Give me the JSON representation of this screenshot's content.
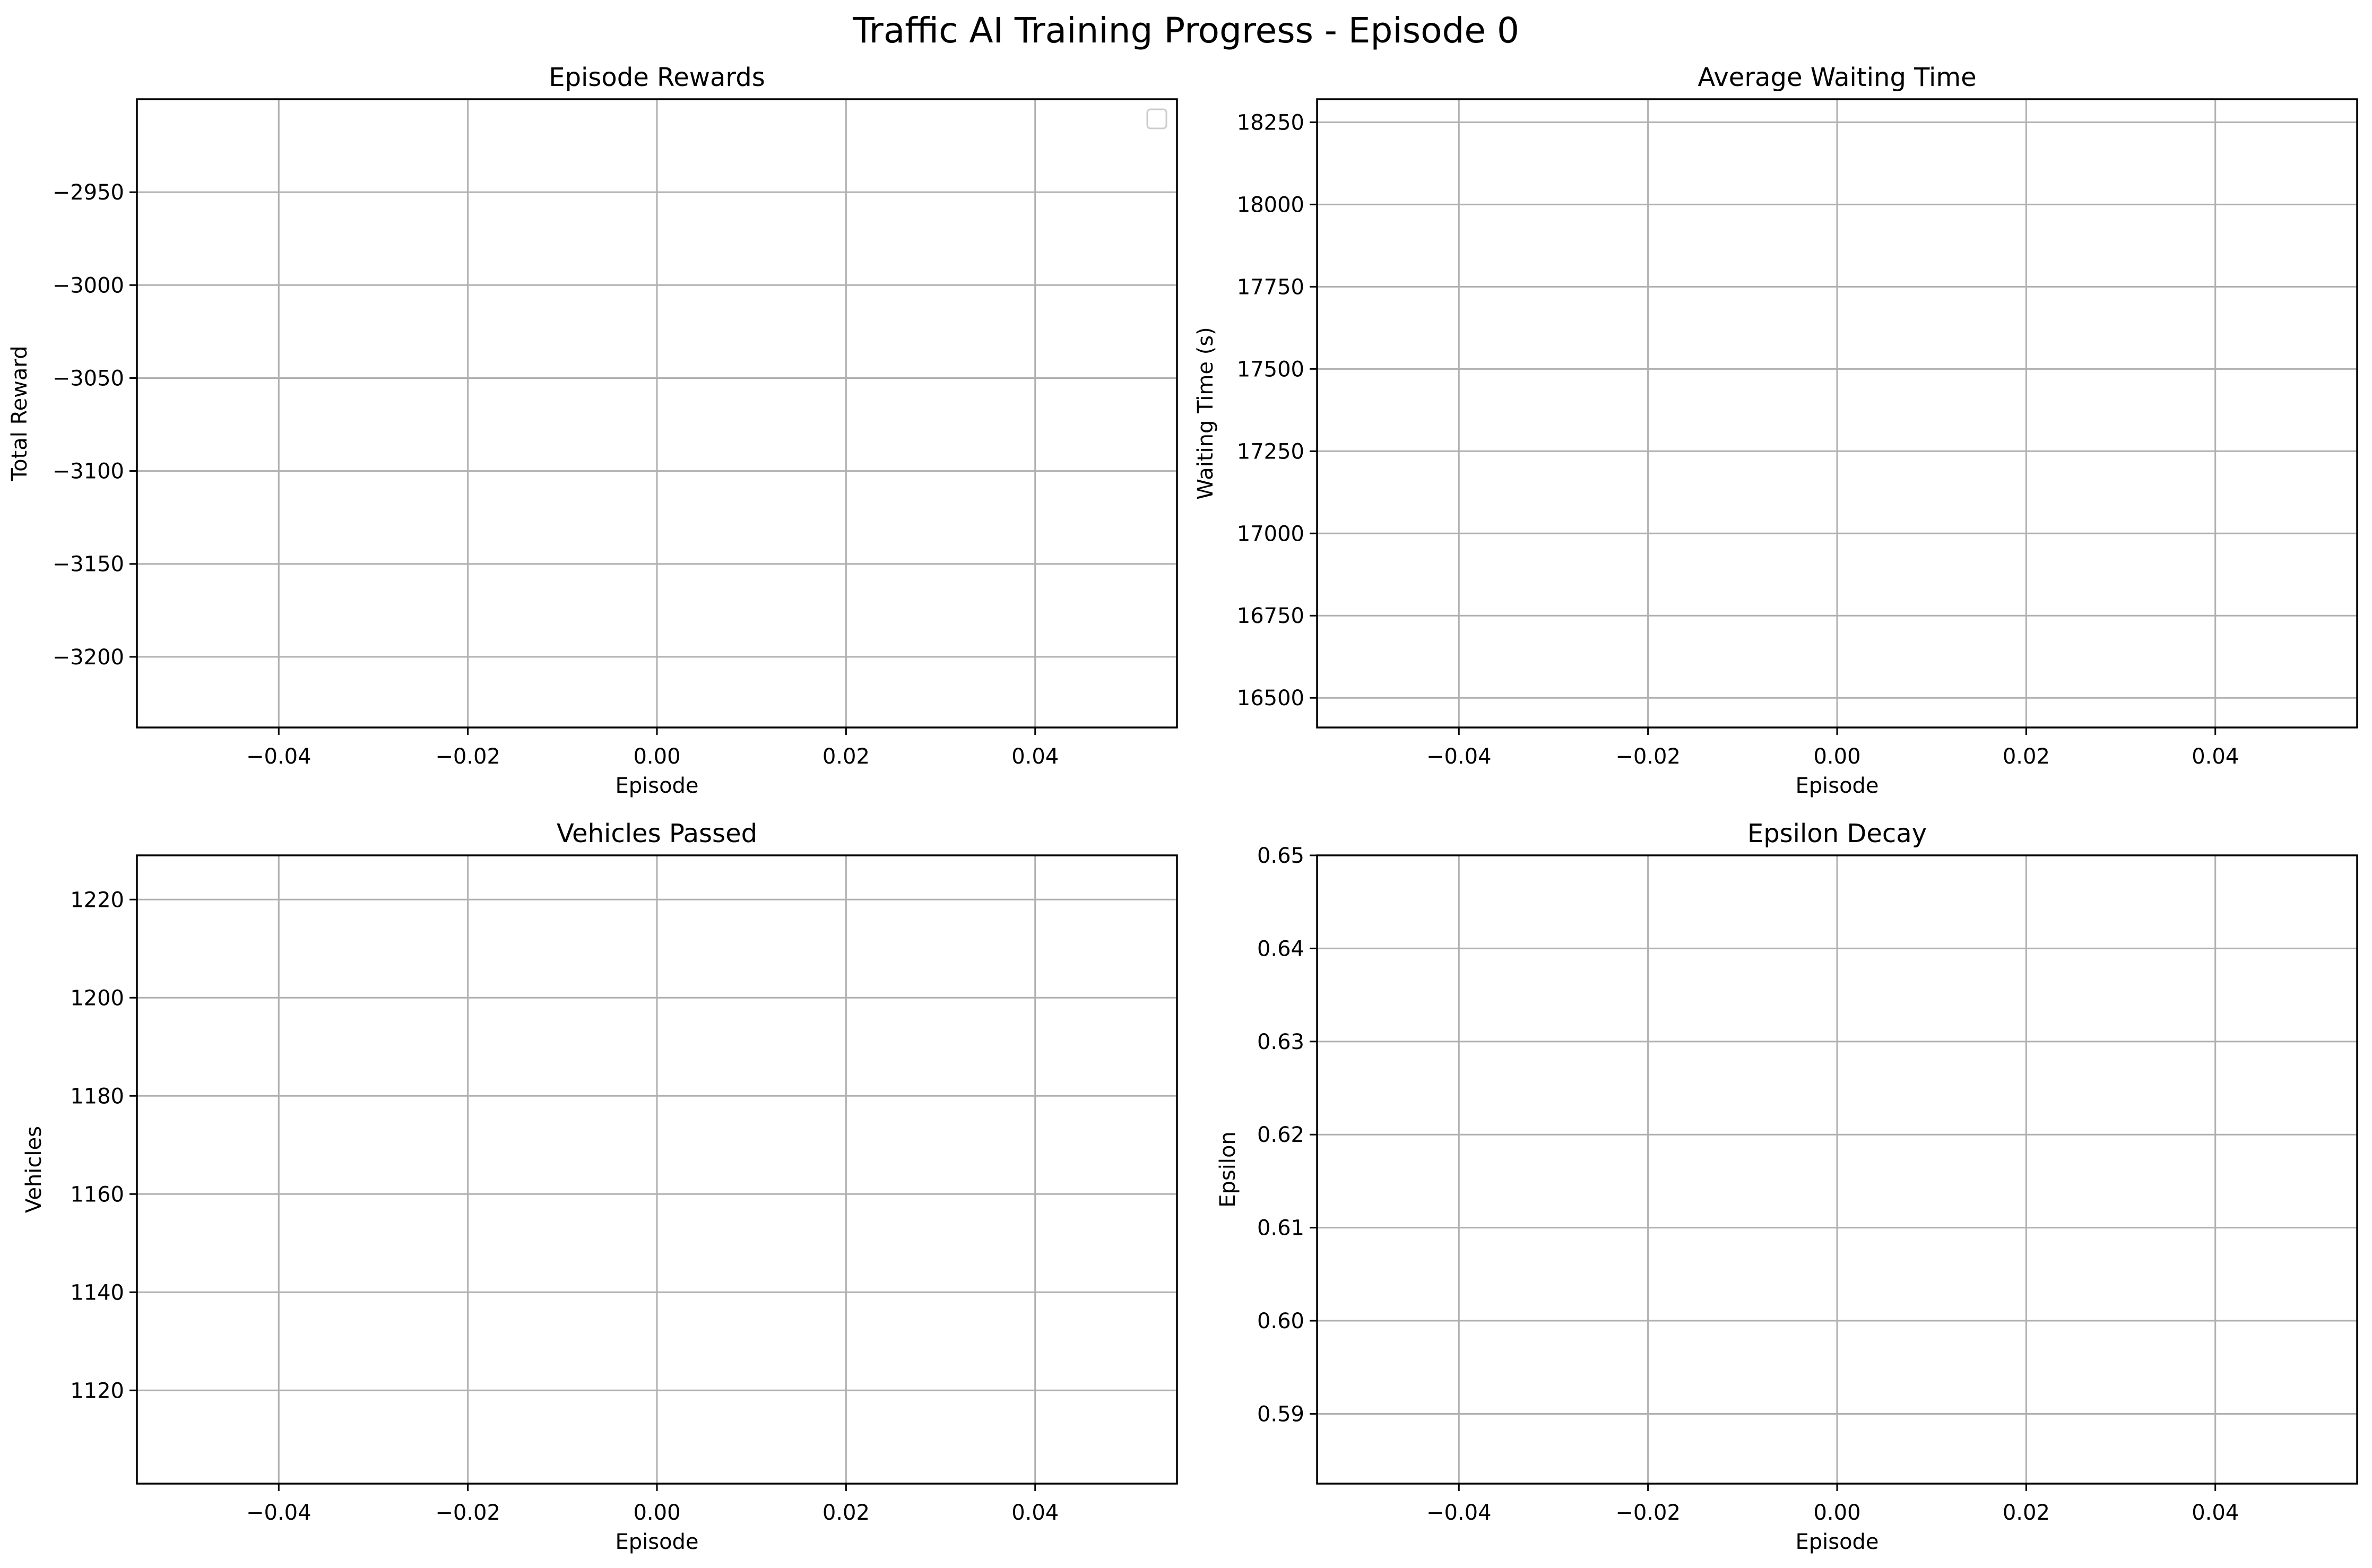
{
  "figure": {
    "title": "Traffic AI Training Progress - Episode 0"
  },
  "chart_data": [
    {
      "type": "line",
      "title": "Episode Rewards",
      "xlabel": "Episode",
      "ylabel": "Total Reward",
      "xlim": [
        -0.055,
        0.055
      ],
      "ylim": [
        -3238,
        -2900
      ],
      "xticks": [
        -0.04,
        -0.02,
        0.0,
        0.02,
        0.04
      ],
      "xtick_labels": [
        "−0.04",
        "−0.02",
        "0.00",
        "0.02",
        "0.04"
      ],
      "yticks": [
        -2950,
        -3000,
        -3050,
        -3100,
        -3150,
        -3200
      ],
      "ytick_labels": [
        "−2950",
        "−3000",
        "−3050",
        "−3100",
        "−3150",
        "−3200"
      ],
      "grid": true,
      "legend": {
        "placement": "upper right",
        "entries": []
      },
      "series": []
    },
    {
      "type": "line",
      "title": "Average Waiting Time",
      "xlabel": "Episode",
      "ylabel": "Waiting Time (s)",
      "xlim": [
        -0.055,
        0.055
      ],
      "ylim": [
        16410,
        18320
      ],
      "xticks": [
        -0.04,
        -0.02,
        0.0,
        0.02,
        0.04
      ],
      "xtick_labels": [
        "−0.04",
        "−0.02",
        "0.00",
        "0.02",
        "0.04"
      ],
      "yticks": [
        18250,
        18000,
        17750,
        17500,
        17250,
        17000,
        16750,
        16500
      ],
      "ytick_labels": [
        "18250",
        "18000",
        "17750",
        "17500",
        "17250",
        "17000",
        "16750",
        "16500"
      ],
      "grid": true,
      "series": []
    },
    {
      "type": "line",
      "title": "Vehicles Passed",
      "xlabel": "Episode",
      "ylabel": "Vehicles",
      "xlim": [
        -0.055,
        0.055
      ],
      "ylim": [
        1101,
        1229
      ],
      "xticks": [
        -0.04,
        -0.02,
        0.0,
        0.02,
        0.04
      ],
      "xtick_labels": [
        "−0.04",
        "−0.02",
        "0.00",
        "0.02",
        "0.04"
      ],
      "yticks": [
        1220,
        1200,
        1180,
        1160,
        1140,
        1120
      ],
      "ytick_labels": [
        "1220",
        "1200",
        "1180",
        "1160",
        "1140",
        "1120"
      ],
      "grid": true,
      "series": []
    },
    {
      "type": "line",
      "title": "Epsilon Decay",
      "xlabel": "Episode",
      "ylabel": "Epsilon",
      "xlim": [
        -0.055,
        0.055
      ],
      "ylim": [
        0.5825,
        0.65
      ],
      "xticks": [
        -0.04,
        -0.02,
        0.0,
        0.02,
        0.04
      ],
      "xtick_labels": [
        "−0.04",
        "−0.02",
        "0.00",
        "0.02",
        "0.04"
      ],
      "yticks": [
        0.65,
        0.64,
        0.63,
        0.62,
        0.61,
        0.6,
        0.59
      ],
      "ytick_labels": [
        "0.65",
        "0.64",
        "0.63",
        "0.62",
        "0.61",
        "0.60",
        "0.59"
      ],
      "grid": true,
      "series": []
    }
  ],
  "colors": {
    "grid": "#b0b0b0",
    "axes": "#000000",
    "background": "#ffffff"
  }
}
